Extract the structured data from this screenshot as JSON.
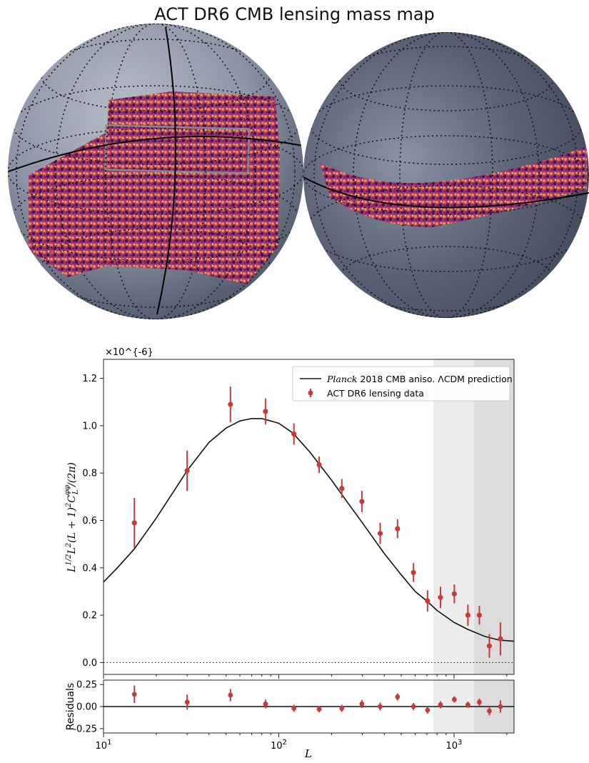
{
  "title": "ACT DR6 CMB lensing mass map",
  "colors": {
    "data": "#c8393b",
    "model": "#111111",
    "band_light": "#ececec",
    "band_dark": "#dcdcdc",
    "map_sky": "#8a93a4",
    "map_patch": "#a8376a"
  },
  "chart_data": [
    {
      "type": "scatter",
      "panel": "main",
      "xscale": "log",
      "xlim": [
        10,
        2200
      ],
      "ylim": [
        -0.05,
        1.28
      ],
      "xlabel": "L",
      "ylabel": "L^{1/2} L^2 (L+1)^2 C_L^{φφ} / (2π)",
      "y_multiplier": "×10^{-6}",
      "xticks": [
        {
          "v": 10,
          "label": "10^1"
        },
        {
          "v": 100,
          "label": "10^2"
        },
        {
          "v": 1000,
          "label": "10^3"
        }
      ],
      "yticks": [
        0.0,
        0.2,
        0.4,
        0.6,
        0.8,
        1.0,
        1.2
      ],
      "ytick_labels": [
        "0.0",
        "0.2",
        "0.4",
        "0.6",
        "0.8",
        "1.0",
        "1.2"
      ],
      "grid": false,
      "legend_position": "top-right",
      "shaded_ranges": [
        {
          "from": 763,
          "to": 1300,
          "tone": "light"
        },
        {
          "from": 1300,
          "to": 2200,
          "tone": "dark"
        }
      ],
      "reference_line": {
        "y": 0.0,
        "style": "dotted"
      },
      "series": [
        {
          "name": "Planck 2018 CMB aniso. ΛCDM prediction",
          "legend_label_italic": "Planck",
          "legend_label_rest": " 2018 CMB aniso. ΛCDM prediction",
          "kind": "line",
          "x": [
            10,
            12,
            15,
            20,
            25,
            30,
            40,
            50,
            60,
            70,
            80,
            90,
            100,
            120,
            150,
            200,
            250,
            300,
            400,
            500,
            600,
            700,
            800,
            1000,
            1200,
            1500,
            1800,
            2200
          ],
          "y": [
            0.34,
            0.4,
            0.48,
            0.61,
            0.72,
            0.81,
            0.93,
            0.99,
            1.02,
            1.03,
            1.03,
            1.02,
            1.01,
            0.97,
            0.89,
            0.77,
            0.67,
            0.59,
            0.46,
            0.37,
            0.3,
            0.26,
            0.22,
            0.17,
            0.14,
            0.11,
            0.095,
            0.09
          ]
        },
        {
          "name": "ACT DR6 lensing data",
          "kind": "errorbar",
          "x": [
            15,
            30,
            53,
            84,
            122,
            170,
            229,
            298,
            379,
            476,
            587,
            706,
            837,
            1004,
            1200,
            1395,
            1591,
            1840
          ],
          "y": [
            0.59,
            0.81,
            1.09,
            1.06,
            0.965,
            0.835,
            0.735,
            0.68,
            0.545,
            0.565,
            0.38,
            0.26,
            0.275,
            0.29,
            0.2,
            0.2,
            0.07,
            0.1
          ],
          "yerr": [
            0.105,
            0.085,
            0.075,
            0.055,
            0.045,
            0.035,
            0.04,
            0.045,
            0.045,
            0.04,
            0.04,
            0.045,
            0.045,
            0.04,
            0.045,
            0.04,
            0.05,
            0.07
          ]
        }
      ]
    },
    {
      "type": "scatter",
      "panel": "residuals",
      "xscale": "log",
      "xlim": [
        10,
        2200
      ],
      "ylim": [
        -0.3,
        0.3
      ],
      "ylabel": "Residuals",
      "yticks": [
        0.25,
        0.0,
        -0.25
      ],
      "ytick_labels": [
        "0.25",
        "0.00",
        "-0.25"
      ],
      "reference_line": {
        "y": 0.0,
        "style": "solid"
      },
      "series": [
        {
          "name": "ACT DR6 lensing data",
          "kind": "errorbar",
          "x": [
            15,
            30,
            53,
            84,
            122,
            170,
            229,
            298,
            379,
            476,
            587,
            706,
            837,
            1004,
            1200,
            1395,
            1591,
            1840
          ],
          "y": [
            0.14,
            0.05,
            0.13,
            0.03,
            -0.02,
            -0.03,
            -0.02,
            0.03,
            0.0,
            0.11,
            0.0,
            -0.04,
            0.02,
            0.08,
            0.02,
            0.05,
            -0.05,
            0.0
          ],
          "yerr": [
            0.1,
            0.085,
            0.07,
            0.05,
            0.04,
            0.035,
            0.04,
            0.045,
            0.045,
            0.04,
            0.04,
            0.04,
            0.04,
            0.035,
            0.035,
            0.04,
            0.05,
            0.07
          ]
        }
      ]
    }
  ]
}
